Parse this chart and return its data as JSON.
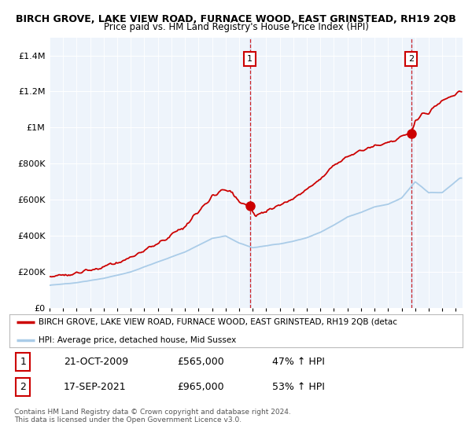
{
  "title": "BIRCH GROVE, LAKE VIEW ROAD, FURNACE WOOD, EAST GRINSTEAD, RH19 2QB",
  "subtitle": "Price paid vs. HM Land Registry's House Price Index (HPI)",
  "hpi_color": "#aacce8",
  "price_color": "#cc0000",
  "marker1_date": 2009.8,
  "marker1_price": 565000,
  "marker1_label": "1",
  "marker2_date": 2021.72,
  "marker2_price": 965000,
  "marker2_label": "2",
  "vline1_x": 2009.8,
  "vline2_x": 2021.72,
  "ylim": [
    0,
    1500000
  ],
  "xlim": [
    1995,
    2025.5
  ],
  "legend_line1": "BIRCH GROVE, LAKE VIEW ROAD, FURNACE WOOD, EAST GRINSTEAD, RH19 2QB (detac",
  "legend_line2": "HPI: Average price, detached house, Mid Sussex",
  "table_row1_num": "1",
  "table_row1_date": "21-OCT-2009",
  "table_row1_price": "£565,000",
  "table_row1_hpi": "47% ↑ HPI",
  "table_row2_num": "2",
  "table_row2_date": "17-SEP-2021",
  "table_row2_price": "£965,000",
  "table_row2_hpi": "53% ↑ HPI",
  "footer": "Contains HM Land Registry data © Crown copyright and database right 2024.\nThis data is licensed under the Open Government Licence v3.0.",
  "background_color": "#ffffff",
  "chart_bg_color": "#eef4fb",
  "grid_color": "#ffffff",
  "vline_shade_color": "#ddeeff"
}
